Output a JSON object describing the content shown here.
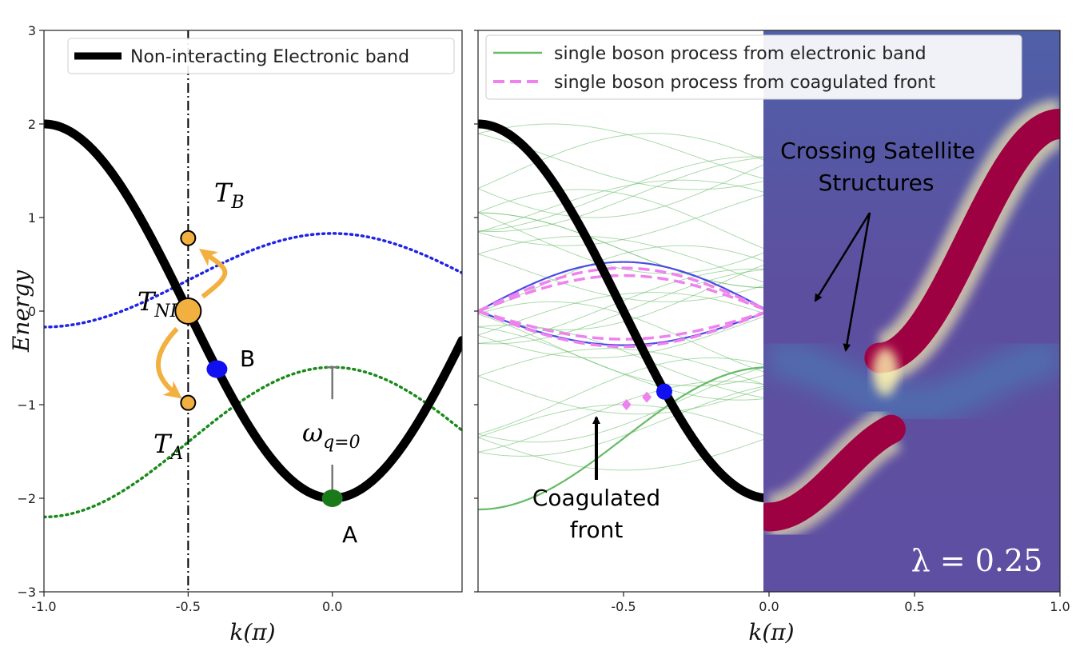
{
  "chart_data": [
    {
      "type": "line",
      "xlabel": "k(π)",
      "ylabel": "Energy",
      "xlim": [
        -1.0,
        0.45
      ],
      "ylim": [
        -3,
        3
      ],
      "x_ticks": [
        -1.0,
        -0.5,
        0.0
      ],
      "x_tick_labels": [
        "-1.0",
        "-0.5",
        "0.0"
      ],
      "y_ticks": [
        -3,
        -2,
        -1,
        0,
        1,
        2,
        3
      ],
      "y_tick_labels": [
        "−3",
        "−2",
        "−1",
        "0",
        "1",
        "2",
        "3"
      ],
      "grid": false,
      "legend": {
        "position": "top-left",
        "entries": [
          "Non-interacting Electronic band"
        ]
      },
      "series": [
        {
          "name": "Non-interacting Electronic band",
          "formula": "E(k) = -2cos(pi k)",
          "color": "#000000",
          "style": "solid"
        },
        {
          "formula": "E(k) = 0.78 + 0.5(cos(pi k) - 0.9)",
          "color": "#1f24e6",
          "style": "dotted"
        },
        {
          "formula": "E(k) = -0.6 + 0.8(cos(pi k) - 1)",
          "color": "#1a8a1a",
          "style": "dotted"
        }
      ],
      "points": [
        {
          "x": -0.5,
          "y": 0.78,
          "color": "#f2b040",
          "label": "T_B"
        },
        {
          "x": -0.5,
          "y": 0.0,
          "color": "#f2b040",
          "label": "T_NI"
        },
        {
          "x": -0.5,
          "y": -0.98,
          "color": "#f2b040",
          "label": "T_A"
        },
        {
          "x": -0.4,
          "y": -0.62,
          "color": "#1010f0",
          "label": "B"
        },
        {
          "x": 0.0,
          "y": -2.0,
          "color": "#1a7a1a",
          "label": "A"
        }
      ],
      "vline_x": -0.5,
      "omega_bracket": {
        "x": 0.0,
        "y_from": -0.6,
        "y_to": -2.0,
        "label": "ω_{q=0}"
      },
      "annotations": {
        "T_B": "T",
        "T_B_sub": "B",
        "T_NI": "T",
        "T_NI_sub": "NI",
        "T_A": "T",
        "T_A_sub": "A",
        "B": "B",
        "A": "A",
        "omega": "ω",
        "omega_sub": "q=0"
      }
    },
    {
      "type": "heatmap",
      "xlabel": "k(π)",
      "xlim": [
        -1.0,
        1.0
      ],
      "ylim": [
        -3,
        3
      ],
      "x_ticks": [
        -0.5,
        0.0,
        0.5,
        1.0
      ],
      "x_tick_labels": [
        "-0.5",
        "0.0",
        "0.5",
        "1.0"
      ],
      "legend": {
        "position": "top-left",
        "entries": [
          "single boson process from electronic band",
          "single boson process from coagulated front"
        ]
      },
      "series": [
        {
          "name": "single boson process from electronic band",
          "color": "#66bb66",
          "style": "solid"
        },
        {
          "name": "single boson process from coagulated front",
          "color": "#ee82ee",
          "style": "dashed"
        }
      ],
      "heatmap_region": {
        "x_from": 0.0,
        "x_to": 1.0
      },
      "bright_band": "E(k) = -2cos(pi k)",
      "points": [
        {
          "x": -0.36,
          "y": -0.86,
          "color": "#1010f0"
        },
        {
          "x": -0.49,
          "y": -1.0,
          "color": "#ee82ee"
        },
        {
          "x": -0.42,
          "y": -0.92,
          "color": "#ee82ee"
        }
      ],
      "annotations": {
        "crossing_line1": "Crossing Satellite",
        "crossing_line2": "Structures",
        "coag_line1": "Coagulated",
        "coag_line2": "front",
        "lambda": "λ = 0.25"
      }
    }
  ]
}
